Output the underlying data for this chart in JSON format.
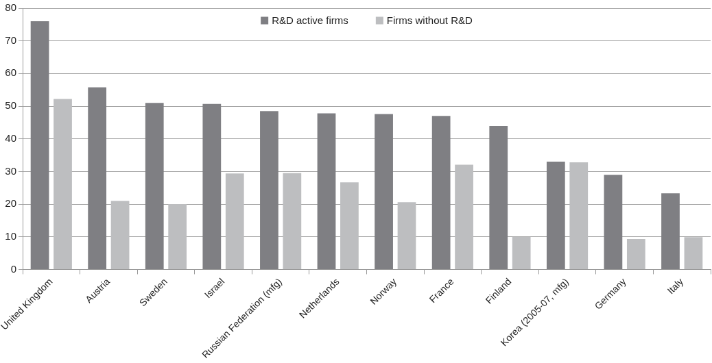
{
  "chart_data": {
    "type": "bar",
    "categories": [
      "United Kingdom",
      "Austria",
      "Sweden",
      "Israel",
      "Russian Federation (mfg)",
      "Netherlands",
      "Norway",
      "France",
      "Finland",
      "Korea (2005-07, mfg)",
      "Germany",
      "Italy"
    ],
    "series": [
      {
        "name": "R&D active firms",
        "color": "#7f7f83",
        "values": [
          76,
          55.8,
          51,
          50.7,
          48.5,
          47.8,
          47.6,
          47,
          43.9,
          33,
          29,
          23.3
        ]
      },
      {
        "name": "Firms without R&D",
        "color": "#bdbec0",
        "values": [
          52.2,
          21,
          20,
          29.4,
          29.5,
          26.7,
          20.6,
          32.1,
          10,
          32.8,
          9.3,
          9.9
        ]
      }
    ],
    "ylim": [
      0,
      80
    ],
    "yticks": [
      0,
      10,
      20,
      30,
      40,
      50,
      60,
      70,
      80
    ],
    "grid": "y",
    "legend": "top"
  }
}
